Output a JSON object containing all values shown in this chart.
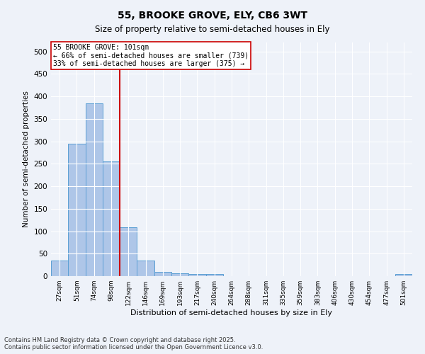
{
  "title1": "55, BROOKE GROVE, ELY, CB6 3WT",
  "title2": "Size of property relative to semi-detached houses in Ely",
  "xlabel": "Distribution of semi-detached houses by size in Ely",
  "ylabel": "Number of semi-detached properties",
  "categories": [
    "27sqm",
    "51sqm",
    "74sqm",
    "98sqm",
    "122sqm",
    "146sqm",
    "169sqm",
    "193sqm",
    "217sqm",
    "240sqm",
    "264sqm",
    "288sqm",
    "311sqm",
    "335sqm",
    "359sqm",
    "383sqm",
    "406sqm",
    "430sqm",
    "454sqm",
    "477sqm",
    "501sqm"
  ],
  "values": [
    35,
    295,
    385,
    255,
    108,
    35,
    10,
    7,
    4,
    4,
    0,
    0,
    0,
    0,
    0,
    0,
    0,
    0,
    0,
    0,
    4
  ],
  "bar_color": "#aec6e8",
  "bar_edge_color": "#5a9fd4",
  "vline_x": 3.5,
  "vline_color": "#cc0000",
  "annotation_title": "55 BROOKE GROVE: 101sqm",
  "annotation_line1": "← 66% of semi-detached houses are smaller (739)",
  "annotation_line2": "33% of semi-detached houses are larger (375) →",
  "annotation_box_color": "#ffffff",
  "annotation_box_edge": "#cc0000",
  "ylim": [
    0,
    520
  ],
  "yticks": [
    0,
    50,
    100,
    150,
    200,
    250,
    300,
    350,
    400,
    450,
    500
  ],
  "footnote1": "Contains HM Land Registry data © Crown copyright and database right 2025.",
  "footnote2": "Contains public sector information licensed under the Open Government Licence v3.0.",
  "bg_color": "#eef2f9"
}
